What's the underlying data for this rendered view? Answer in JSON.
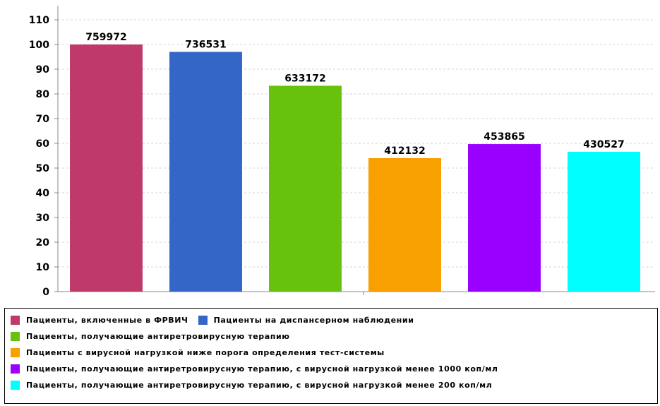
{
  "chart_data": {
    "type": "bar",
    "title": "",
    "xlabel": "",
    "ylabel": "",
    "ylim": [
      0,
      110
    ],
    "yticks": [
      0,
      10,
      20,
      30,
      40,
      50,
      60,
      70,
      80,
      90,
      100,
      110
    ],
    "grid": true,
    "legend_position": "bottom",
    "categories": [
      "Пациенты, включенные в ФРВИЧ",
      "Пациенты на диспансерном наблюдении",
      "Пациенты, получающие антиретровирусную терапию",
      "Пациенты с вирусной нагрузкой ниже порога определения тест-системы",
      "Пациенты, получающие антиретровирусную терапию, с вирусной нагрузкой менее 1000 коп/мл",
      "Пациенты, получающие антиретровирусную терапию, с вирусной нагрузкой менее 200 коп/мл"
    ],
    "values": [
      100,
      97,
      83.3,
      54,
      59.7,
      56.6
    ],
    "data_labels": [
      "759972",
      "736531",
      "633172",
      "412132",
      "453865",
      "430527"
    ],
    "colors": [
      "#c0396b",
      "#3366c6",
      "#66c20c",
      "#f7a000",
      "#9900ff",
      "#00ffff"
    ]
  }
}
